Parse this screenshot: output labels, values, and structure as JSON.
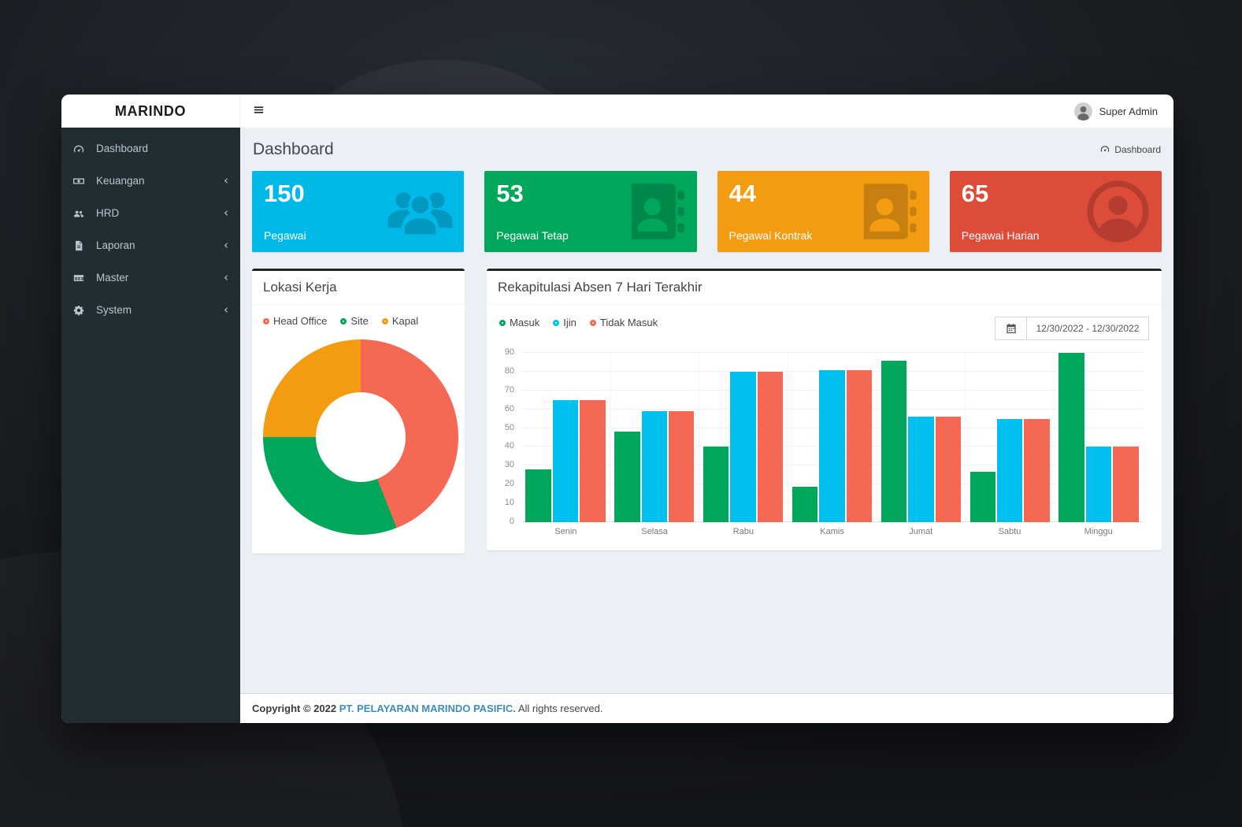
{
  "brand": "MARINDO",
  "topbar": {
    "menu_icon": "hamburger-icon",
    "user_name": "Super Admin",
    "avatar_icon": "user-avatar"
  },
  "sidebar": {
    "items": [
      {
        "label": "Dashboard",
        "icon": "tachometer-icon",
        "expandable": false
      },
      {
        "label": "Keuangan",
        "icon": "money-icon",
        "expandable": true
      },
      {
        "label": "HRD",
        "icon": "users-icon",
        "expandable": true
      },
      {
        "label": "Laporan",
        "icon": "file-icon",
        "expandable": true
      },
      {
        "label": "Master",
        "icon": "table-icon",
        "expandable": true
      },
      {
        "label": "System",
        "icon": "gear-icon",
        "expandable": true
      }
    ],
    "chevron": "‹"
  },
  "content_header": {
    "title": "Dashboard",
    "breadcrumb": "Dashboard",
    "breadcrumb_icon": "tachometer-icon"
  },
  "stat_cards": [
    {
      "value": "150",
      "label": "Pegawai",
      "color": "#00b9e8",
      "icon": "users-icon"
    },
    {
      "value": "53",
      "label": "Pegawai Tetap",
      "color": "#00a65a",
      "icon": "address-book-icon"
    },
    {
      "value": "44",
      "label": "Pegawai Kontrak",
      "color": "#f39c12",
      "icon": "address-book-icon"
    },
    {
      "value": "65",
      "label": "Pegawai Harian",
      "color": "#dd4b39",
      "icon": "user-circle-icon"
    }
  ],
  "boxes": {
    "donut_title": "Lokasi Kerja",
    "bar_title": "Rekapitulasi Absen 7 Hari Terakhir"
  },
  "chart_data": [
    {
      "type": "pie",
      "title": "Lokasi Kerja",
      "labels": [
        "Head Office",
        "Site",
        "Kapal"
      ],
      "values_percent": [
        44,
        31,
        25
      ],
      "colors": [
        "#f56954",
        "#00a65a",
        "#f39c12"
      ],
      "donut_hole_ratio": 0.46,
      "legend_position": "top"
    },
    {
      "type": "bar",
      "title": "Rekapitulasi Absen 7 Hari Terakhir",
      "categories": [
        "Senin",
        "Selasa",
        "Rabu",
        "Kamis",
        "Jumat",
        "Sabtu",
        "Minggu"
      ],
      "series": [
        {
          "name": "Masuk",
          "color": "#00a65a",
          "values": [
            28,
            48,
            40,
            19,
            86,
            27,
            90
          ]
        },
        {
          "name": "Ijin",
          "color": "#00c0ef",
          "values": [
            65,
            59,
            80,
            81,
            56,
            55,
            40
          ]
        },
        {
          "name": "Tidak Masuk",
          "color": "#f56954",
          "values": [
            65,
            59,
            80,
            81,
            56,
            55,
            40
          ]
        }
      ],
      "ylim": [
        0,
        90
      ],
      "ytick_step": 10,
      "grid": true,
      "legend_position": "top-left",
      "date_range": "12/30/2022 - 12/30/2022",
      "date_icon": "calendar-icon"
    }
  ],
  "footer": {
    "copyright_prefix": "Copyright © 2022",
    "company": "PT. PELAYARAN MARINDO PASIFIC.",
    "suffix": "All rights reserved."
  }
}
